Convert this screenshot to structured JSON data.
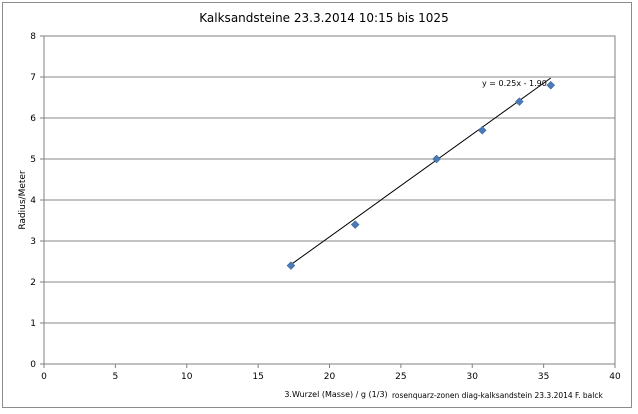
{
  "chart_data": {
    "type": "scatter",
    "title": "Kalksandsteine 23.3.2014  10:15 bis 1025",
    "xlabel": "3.Wurzel (Masse) / g (1/3)",
    "ylabel": "Radius/Meter",
    "xlim": [
      0,
      40
    ],
    "ylim": [
      0,
      8
    ],
    "xticks": [
      "0",
      "5",
      "10",
      "15",
      "20",
      "25",
      "30",
      "35",
      "40"
    ],
    "yticks": [
      "0",
      "1",
      "2",
      "3",
      "4",
      "5",
      "6",
      "7",
      "8"
    ],
    "grid": "horizontal",
    "series": [
      {
        "x": [
          17.3,
          21.8,
          27.5,
          30.7,
          33.3,
          35.5
        ],
        "y": [
          2.4,
          3.4,
          5.0,
          5.7,
          6.4,
          6.8
        ],
        "marker": "diamond",
        "color": "#4a7ab8"
      }
    ],
    "trendline": {
      "label": "y = 0.25x - 1.90",
      "slope": 0.25,
      "intercept": -1.9,
      "x_range": [
        17.3,
        35.5
      ],
      "color": "#000000"
    },
    "annotations": [
      "rosenquarz-zonen diag-kalksandstein 23.3.2014 F. balck"
    ]
  }
}
